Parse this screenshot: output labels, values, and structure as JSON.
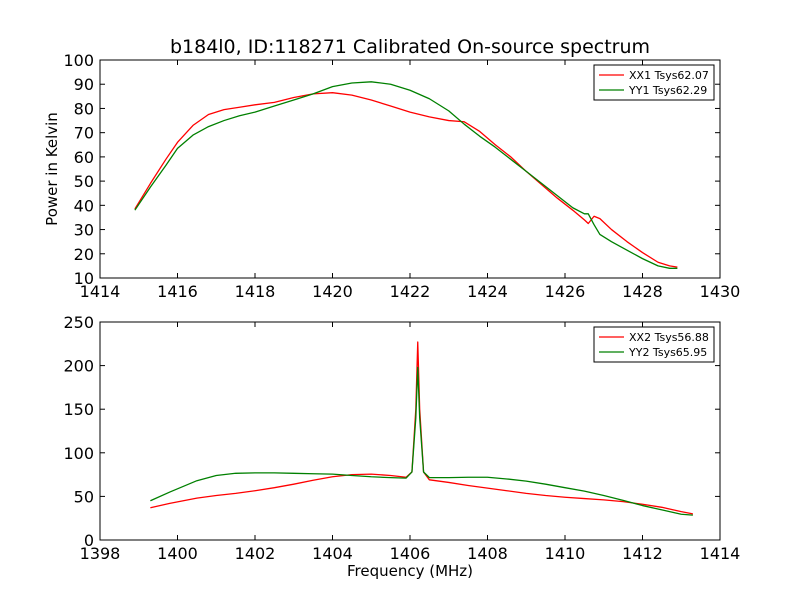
{
  "chart_data": [
    {
      "type": "line",
      "title": "b184l0, ID:118271 Calibrated On-source spectrum",
      "xlabel": "",
      "ylabel": "Power in Kelvin",
      "xlim": [
        1414,
        1430
      ],
      "ylim": [
        10,
        100
      ],
      "xticks": [
        1414,
        1416,
        1418,
        1420,
        1422,
        1424,
        1426,
        1428,
        1430
      ],
      "yticks": [
        10,
        20,
        30,
        40,
        50,
        60,
        70,
        80,
        90,
        100
      ],
      "grid": false,
      "legend": "top-right",
      "series": [
        {
          "name": "XX1 Tsys62.07",
          "color": "#ff0000",
          "x": [
            1414.9,
            1415.3,
            1415.7,
            1416.0,
            1416.4,
            1416.8,
            1417.2,
            1417.6,
            1418.0,
            1418.5,
            1419.0,
            1419.5,
            1420.0,
            1420.5,
            1421.0,
            1421.5,
            1422.0,
            1422.5,
            1423.0,
            1423.4,
            1423.8,
            1424.2,
            1424.6,
            1425.0,
            1425.4,
            1425.8,
            1426.2,
            1426.5,
            1426.6,
            1426.75,
            1426.9,
            1427.2,
            1427.6,
            1428.0,
            1428.4,
            1428.7,
            1428.9
          ],
          "y": [
            38.5,
            49.0,
            59.0,
            66.0,
            73.0,
            77.5,
            79.5,
            80.5,
            81.5,
            82.5,
            84.5,
            86.0,
            86.5,
            85.5,
            83.5,
            81.0,
            78.5,
            76.5,
            75.0,
            74.5,
            70.5,
            65.0,
            60.0,
            54.0,
            48.5,
            43.0,
            38.0,
            34.0,
            32.5,
            35.5,
            34.5,
            30.0,
            25.0,
            20.5,
            16.5,
            15.0,
            14.5
          ]
        },
        {
          "name": "YY1 Tsys62.29",
          "color": "#008000",
          "x": [
            1414.9,
            1415.3,
            1415.7,
            1416.0,
            1416.4,
            1416.8,
            1417.2,
            1417.6,
            1418.0,
            1418.5,
            1419.0,
            1419.5,
            1420.0,
            1420.5,
            1421.0,
            1421.5,
            1422.0,
            1422.5,
            1423.0,
            1423.4,
            1423.8,
            1424.2,
            1424.6,
            1425.0,
            1425.4,
            1425.8,
            1426.2,
            1426.5,
            1426.6,
            1426.75,
            1426.9,
            1427.2,
            1427.6,
            1428.0,
            1428.4,
            1428.7,
            1428.9
          ],
          "y": [
            38.0,
            47.5,
            56.5,
            63.5,
            69.0,
            72.5,
            75.0,
            77.0,
            78.5,
            81.0,
            83.5,
            86.0,
            89.0,
            90.5,
            91.0,
            90.0,
            87.5,
            84.0,
            79.0,
            73.5,
            68.5,
            64.0,
            59.0,
            54.0,
            49.0,
            44.0,
            39.0,
            36.5,
            36.5,
            32.0,
            28.0,
            25.0,
            21.5,
            18.0,
            15.0,
            14.0,
            14.0
          ]
        }
      ]
    },
    {
      "type": "line",
      "title": "",
      "xlabel": "Frequency (MHz)",
      "ylabel": "",
      "xlim": [
        1398,
        1414
      ],
      "ylim": [
        0,
        250
      ],
      "xticks": [
        1398,
        1400,
        1402,
        1404,
        1406,
        1408,
        1410,
        1412,
        1414
      ],
      "yticks": [
        0,
        50,
        100,
        150,
        200,
        250
      ],
      "grid": false,
      "legend": "top-right",
      "series": [
        {
          "name": "XX2 Tsys56.88",
          "color": "#ff0000",
          "x": [
            1399.3,
            1399.8,
            1400.5,
            1401.0,
            1401.5,
            1402.0,
            1402.5,
            1403.0,
            1403.5,
            1404.0,
            1404.5,
            1405.0,
            1405.5,
            1405.9,
            1406.05,
            1406.15,
            1406.2,
            1406.25,
            1406.35,
            1406.5,
            1407.0,
            1407.5,
            1408.0,
            1408.5,
            1409.0,
            1409.5,
            1410.0,
            1410.5,
            1411.0,
            1411.5,
            1412.0,
            1412.5,
            1413.0,
            1413.3
          ],
          "y": [
            37.0,
            42.0,
            48.0,
            51.0,
            53.5,
            56.5,
            60.0,
            64.0,
            68.5,
            72.5,
            75.0,
            75.5,
            74.0,
            72.0,
            78.0,
            150.0,
            227.0,
            150.0,
            78.0,
            69.0,
            66.0,
            62.5,
            59.5,
            56.5,
            53.5,
            51.0,
            49.0,
            47.5,
            46.0,
            44.0,
            41.0,
            37.5,
            32.5,
            30.0
          ]
        },
        {
          "name": "YY2 Tsys65.95",
          "color": "#008000",
          "x": [
            1399.3,
            1399.8,
            1400.5,
            1401.0,
            1401.5,
            1402.0,
            1402.5,
            1403.0,
            1403.5,
            1404.0,
            1404.5,
            1405.0,
            1405.5,
            1405.9,
            1406.05,
            1406.15,
            1406.2,
            1406.25,
            1406.35,
            1406.5,
            1407.0,
            1407.5,
            1408.0,
            1408.5,
            1409.0,
            1409.5,
            1410.0,
            1410.5,
            1411.0,
            1411.5,
            1412.0,
            1412.5,
            1413.0,
            1413.3
          ],
          "y": [
            45.0,
            55.0,
            68.0,
            74.0,
            76.5,
            77.0,
            77.0,
            76.5,
            76.0,
            75.5,
            74.0,
            72.5,
            71.5,
            71.0,
            78.0,
            140.0,
            198.0,
            140.0,
            78.0,
            71.5,
            71.5,
            72.0,
            72.0,
            70.0,
            67.5,
            64.0,
            60.0,
            56.0,
            51.0,
            45.5,
            39.5,
            34.5,
            29.5,
            28.5
          ]
        }
      ]
    }
  ]
}
